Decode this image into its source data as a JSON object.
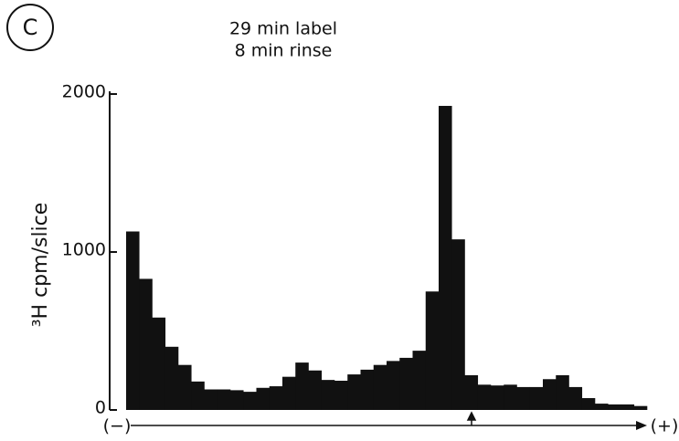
{
  "chart_data": {
    "type": "bar",
    "panel_label": "C",
    "annotations": [
      "29 min label",
      "8 min rinse"
    ],
    "y_label": "³H cpm/slice",
    "x_axis_ends": [
      "(−)",
      "(+)"
    ],
    "categories": [
      null,
      null,
      null,
      null,
      null,
      null,
      null,
      null,
      null,
      null,
      null,
      null,
      null,
      null,
      null,
      null,
      null,
      null,
      null,
      null,
      null,
      null,
      null,
      null,
      null,
      null,
      null,
      null,
      null,
      null,
      null,
      null,
      null,
      null,
      null,
      null,
      null,
      null,
      null,
      null
    ],
    "values": [
      1130,
      830,
      585,
      400,
      285,
      180,
      130,
      130,
      125,
      115,
      140,
      150,
      210,
      300,
      250,
      190,
      185,
      225,
      255,
      285,
      310,
      330,
      375,
      750,
      1925,
      1080,
      220,
      160,
      155,
      160,
      145,
      145,
      195,
      220,
      145,
      75,
      40,
      35,
      35,
      25
    ],
    "color": "#111111",
    "ylim": [
      0,
      2000
    ],
    "yticks": [
      0,
      1000,
      2000
    ]
  }
}
